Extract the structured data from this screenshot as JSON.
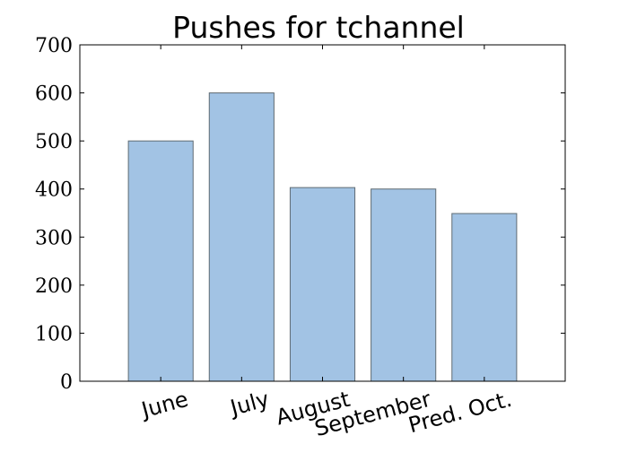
{
  "chart_data": {
    "type": "bar",
    "title": "Pushes for tchannel",
    "xlabel": "",
    "ylabel": "",
    "categories": [
      "June",
      "July",
      "August",
      "September",
      "Pred. Oct."
    ],
    "values": [
      500,
      600,
      403,
      400,
      349
    ],
    "ylim": [
      0,
      700
    ],
    "yticks": [
      "0",
      "100",
      "200",
      "300",
      "400",
      "500",
      "600",
      "700"
    ],
    "grid": false,
    "bar_color": "#a2c3e4",
    "bar_edge_color": "#5f6b73"
  }
}
